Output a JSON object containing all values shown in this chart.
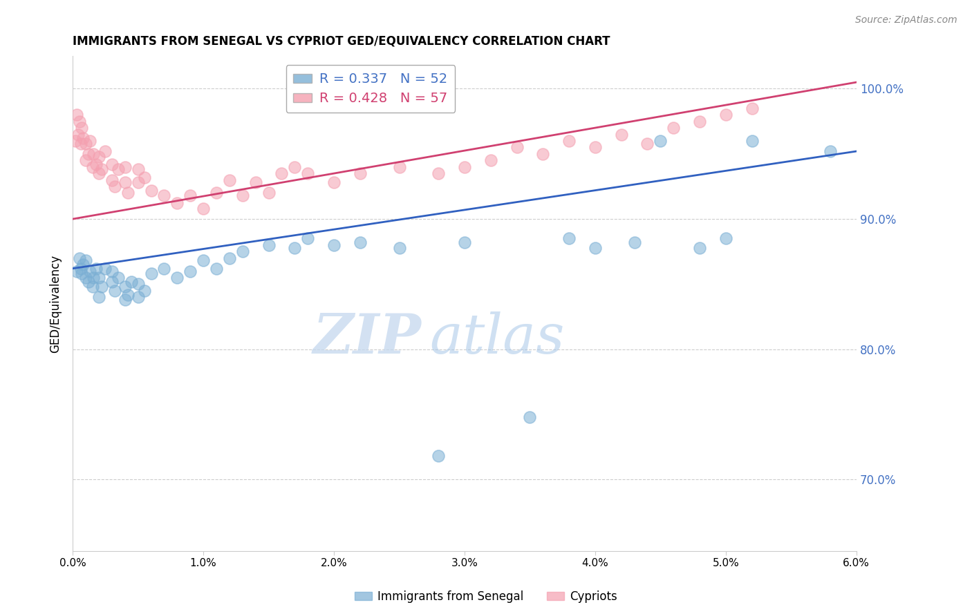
{
  "title": "IMMIGRANTS FROM SENEGAL VS CYPRIOT GED/EQUIVALENCY CORRELATION CHART",
  "source_text": "Source: ZipAtlas.com",
  "ylabel": "GED/Equivalency",
  "xmin": 0.0,
  "xmax": 0.06,
  "ymin": 0.645,
  "ymax": 1.025,
  "yticks": [
    0.7,
    0.8,
    0.9,
    1.0
  ],
  "ytick_labels": [
    "70.0%",
    "80.0%",
    "90.0%",
    "100.0%"
  ],
  "xticks": [
    0.0,
    0.01,
    0.02,
    0.03,
    0.04,
    0.05,
    0.06
  ],
  "xtick_labels": [
    "0.0%",
    "1.0%",
    "2.0%",
    "3.0%",
    "4.0%",
    "5.0%",
    "6.0%"
  ],
  "blue_R": 0.337,
  "blue_N": 52,
  "pink_R": 0.428,
  "pink_N": 57,
  "blue_color": "#7bafd4",
  "pink_color": "#f4a0b0",
  "blue_line_color": "#3060c0",
  "pink_line_color": "#d04070",
  "blue_text_color": "#4472c4",
  "legend_label_blue": "Immigrants from Senegal",
  "legend_label_pink": "Cypriots",
  "watermark_zip": "ZIP",
  "watermark_atlas": "atlas",
  "blue_x": [
    0.0003,
    0.0005,
    0.0006,
    0.0007,
    0.0008,
    0.001,
    0.001,
    0.0012,
    0.0013,
    0.0015,
    0.0016,
    0.0018,
    0.002,
    0.002,
    0.0022,
    0.0025,
    0.003,
    0.003,
    0.0032,
    0.0035,
    0.004,
    0.004,
    0.0042,
    0.0045,
    0.005,
    0.005,
    0.0055,
    0.006,
    0.007,
    0.008,
    0.009,
    0.01,
    0.011,
    0.012,
    0.013,
    0.015,
    0.017,
    0.018,
    0.02,
    0.022,
    0.025,
    0.028,
    0.03,
    0.035,
    0.038,
    0.04,
    0.043,
    0.045,
    0.048,
    0.05,
    0.052,
    0.058
  ],
  "blue_y": [
    0.86,
    0.87,
    0.862,
    0.858,
    0.865,
    0.855,
    0.868,
    0.852,
    0.86,
    0.848,
    0.855,
    0.862,
    0.84,
    0.855,
    0.848,
    0.862,
    0.852,
    0.86,
    0.845,
    0.855,
    0.838,
    0.848,
    0.842,
    0.852,
    0.84,
    0.85,
    0.845,
    0.858,
    0.862,
    0.855,
    0.86,
    0.868,
    0.862,
    0.87,
    0.875,
    0.88,
    0.878,
    0.885,
    0.88,
    0.882,
    0.878,
    0.718,
    0.882,
    0.748,
    0.885,
    0.878,
    0.882,
    0.96,
    0.878,
    0.885,
    0.96,
    0.952
  ],
  "pink_x": [
    0.0002,
    0.0003,
    0.0004,
    0.0005,
    0.0006,
    0.0007,
    0.0008,
    0.001,
    0.001,
    0.0012,
    0.0013,
    0.0015,
    0.0016,
    0.0018,
    0.002,
    0.002,
    0.0022,
    0.0025,
    0.003,
    0.003,
    0.0032,
    0.0035,
    0.004,
    0.004,
    0.0042,
    0.005,
    0.005,
    0.0055,
    0.006,
    0.007,
    0.008,
    0.009,
    0.01,
    0.011,
    0.012,
    0.013,
    0.014,
    0.015,
    0.016,
    0.017,
    0.018,
    0.02,
    0.022,
    0.025,
    0.028,
    0.03,
    0.032,
    0.034,
    0.036,
    0.038,
    0.04,
    0.042,
    0.044,
    0.046,
    0.048,
    0.05,
    0.052
  ],
  "pink_y": [
    0.96,
    0.98,
    0.965,
    0.975,
    0.958,
    0.97,
    0.962,
    0.945,
    0.958,
    0.95,
    0.96,
    0.94,
    0.95,
    0.942,
    0.935,
    0.948,
    0.938,
    0.952,
    0.93,
    0.942,
    0.925,
    0.938,
    0.928,
    0.94,
    0.92,
    0.928,
    0.938,
    0.932,
    0.922,
    0.918,
    0.912,
    0.918,
    0.908,
    0.92,
    0.93,
    0.918,
    0.928,
    0.92,
    0.935,
    0.94,
    0.935,
    0.928,
    0.935,
    0.94,
    0.935,
    0.94,
    0.945,
    0.955,
    0.95,
    0.96,
    0.955,
    0.965,
    0.958,
    0.97,
    0.975,
    0.98,
    0.985
  ],
  "blue_line_x0": 0.0,
  "blue_line_y0": 0.862,
  "blue_line_x1": 0.06,
  "blue_line_y1": 0.952,
  "pink_line_x0": 0.0,
  "pink_line_y0": 0.9,
  "pink_line_x1": 0.06,
  "pink_line_y1": 1.005
}
